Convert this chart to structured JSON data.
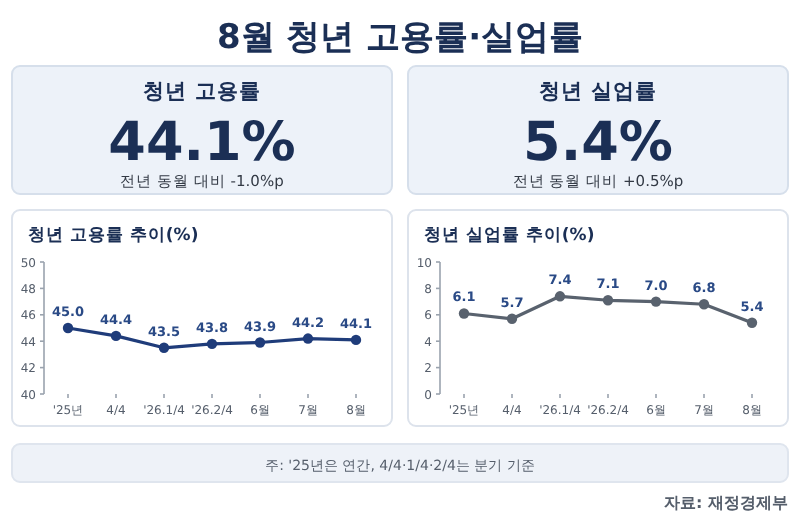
{
  "chart_data": [
    {
      "type": "other",
      "title": "8월 청년 고용률·실업률",
      "annotations": [
        "주: '25년은 연간, 4/4·1/4·2/4는 분기 기준",
        "자료: 재정경제부"
      ]
    },
    {
      "type": "other",
      "title": "청년 고용률",
      "annotations": [
        "44.1%",
        "전년 동월 대비 -1.0%p"
      ]
    },
    {
      "type": "other",
      "title": "청년 실업률",
      "annotations": [
        "5.4%",
        "전년 동월 대비 +0.5%p"
      ]
    },
    {
      "type": "line",
      "title": "청년 고용률 추이(%)",
      "categories": [
        "'25년",
        "4/4",
        "'26.1/4",
        "'26.2/4",
        "6월",
        "7월",
        "8월"
      ],
      "series": [
        {
          "color": "#1f3c7a",
          "values": [
            45.0,
            44.4,
            43.5,
            43.8,
            43.9,
            44.2,
            44.1
          ],
          "value_labels": [
            "45.0",
            "44.4",
            "43.5",
            "43.8",
            "43.9",
            "44.2",
            "44.1"
          ]
        }
      ],
      "ylim": [
        40,
        50
      ],
      "yticks": [
        40,
        42,
        44,
        46,
        48,
        50
      ],
      "marker": "circle",
      "line_style": "solid"
    },
    {
      "type": "line",
      "title": "청년 실업률 추이(%)",
      "categories": [
        "'25년",
        "4/4",
        "'26.1/4",
        "'26.2/4",
        "6월",
        "7월",
        "8월"
      ],
      "series": [
        {
          "color": "#59626e",
          "values": [
            6.1,
            5.7,
            7.4,
            7.1,
            7.0,
            6.8,
            5.4
          ],
          "value_labels": [
            "6.1",
            "5.7",
            "7.4",
            "7.1",
            "7.0",
            "6.8",
            "5.4"
          ]
        }
      ],
      "ylim": [
        0,
        10
      ],
      "yticks": [
        0,
        2,
        4,
        6,
        8,
        10
      ],
      "marker": "circle",
      "line_style": "solid"
    }
  ]
}
